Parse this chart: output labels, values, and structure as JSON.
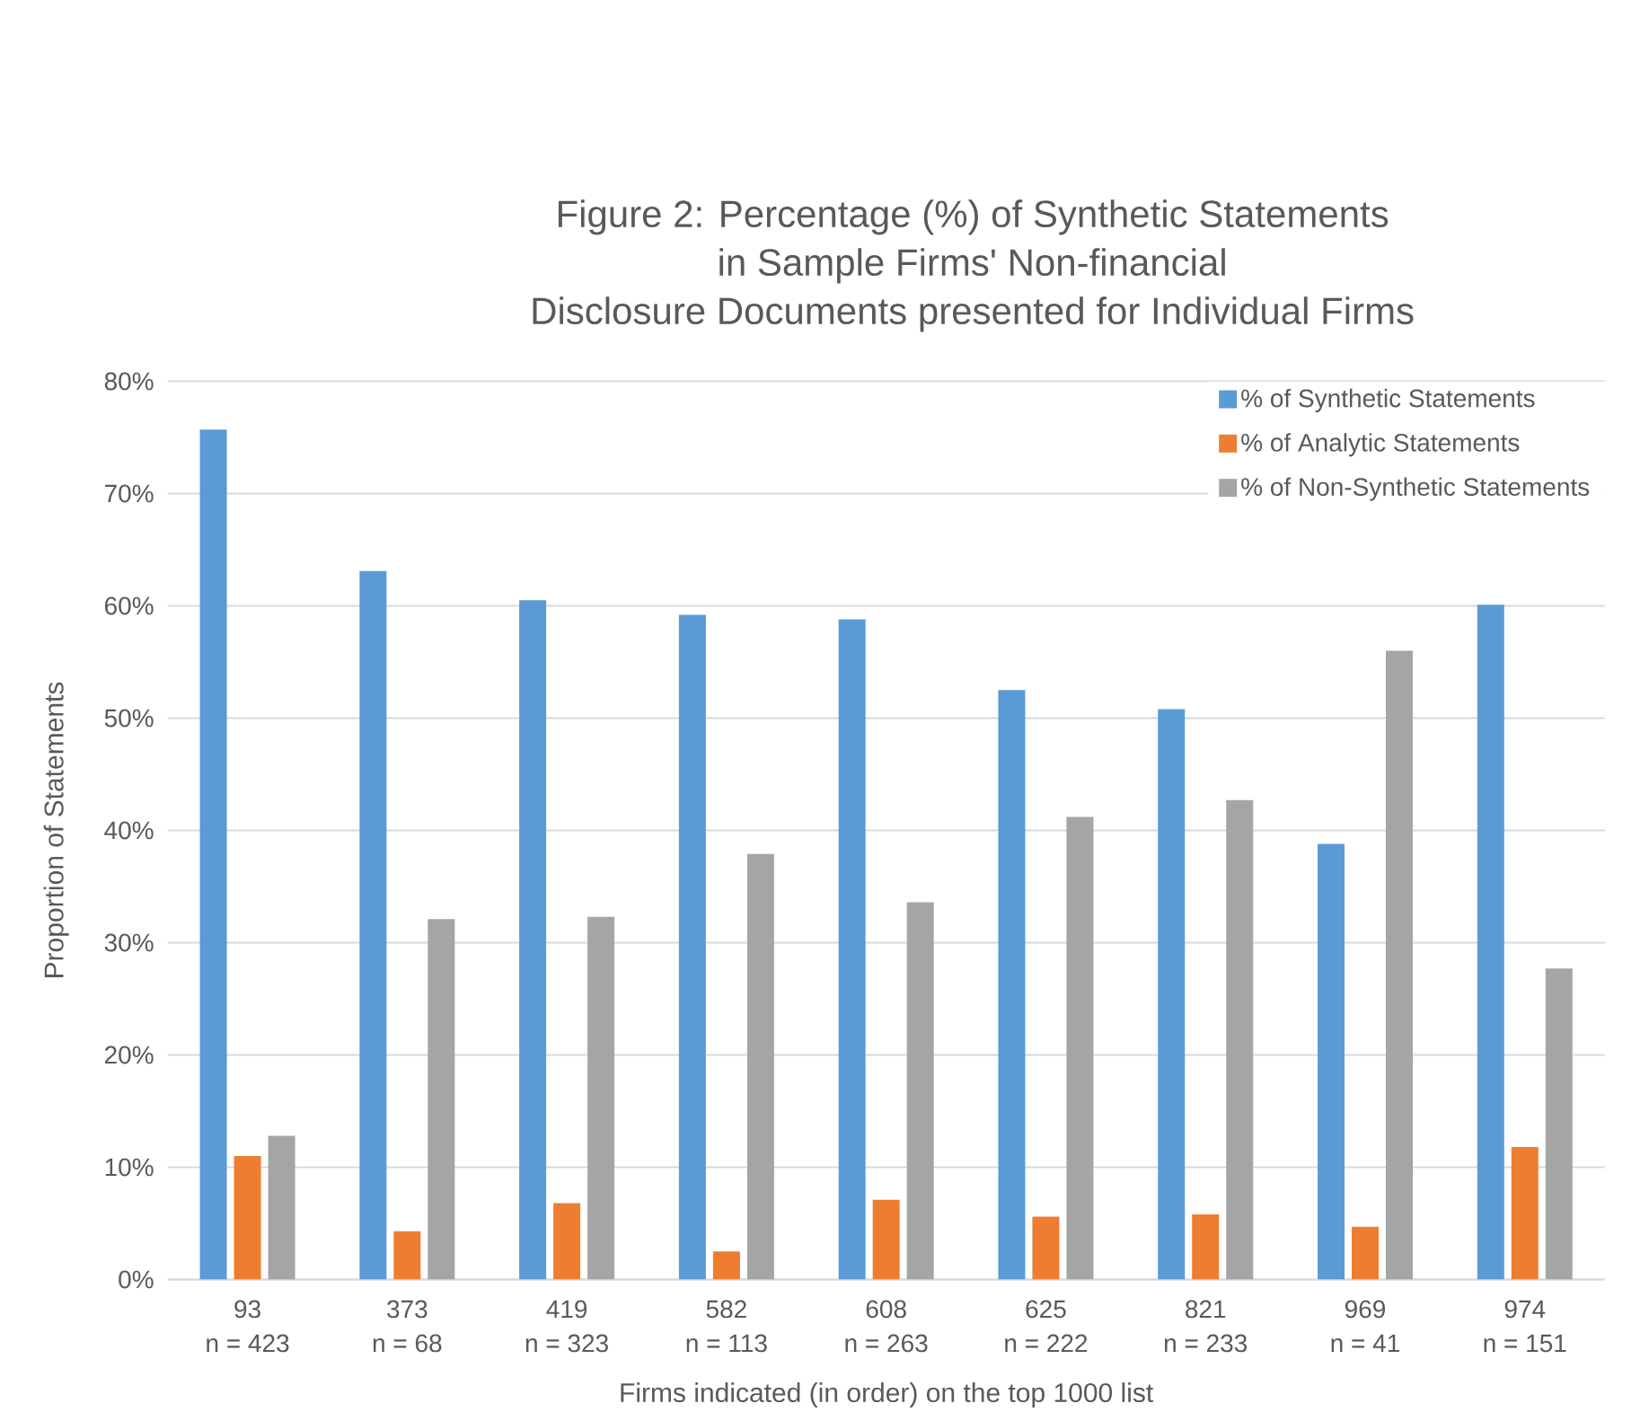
{
  "chart_data": {
    "type": "bar",
    "title": "Figure 2: Percentage (%) of Synthetic Statements\nin Sample Firms' Non-financial\nDisclosure Documents presented for Individual Firms",
    "xlabel": "Firms indicated (in order) on the top 1000 list",
    "ylabel": "Proportion of Statements",
    "categories": [
      "93\nn = 423",
      "373\nn = 68",
      "419\nn = 323",
      "582\nn = 113",
      "608\nn = 263",
      "625\nn = 222",
      "821\nn = 233",
      "969\nn = 41",
      "974\nn = 151"
    ],
    "series": [
      {
        "name": "% of Synthetic Statements",
        "color": "#5b9bd5",
        "values": [
          75.7,
          63.1,
          60.5,
          59.2,
          58.8,
          52.5,
          50.8,
          38.8,
          60.1
        ]
      },
      {
        "name": "% of Analytic Statements",
        "color": "#ed7d31",
        "values": [
          11.0,
          4.3,
          6.8,
          2.5,
          7.1,
          5.6,
          5.8,
          4.7,
          11.8
        ]
      },
      {
        "name": "% of Non-Synthetic Statements",
        "color": "#a5a5a5",
        "values": [
          12.8,
          32.1,
          32.3,
          37.9,
          33.6,
          41.2,
          42.7,
          56.0,
          27.7
        ]
      }
    ],
    "ylim": [
      0,
      80
    ],
    "yticks": [
      {
        "value": 0,
        "label": "0%"
      },
      {
        "value": 10,
        "label": "10%"
      },
      {
        "value": 20,
        "label": "20%"
      },
      {
        "value": 30,
        "label": "30%"
      },
      {
        "value": 40,
        "label": "40%"
      },
      {
        "value": 50,
        "label": "50%"
      },
      {
        "value": 60,
        "label": "60%"
      },
      {
        "value": 70,
        "label": "70%"
      },
      {
        "value": 80,
        "label": "80%"
      }
    ],
    "grid": "y",
    "legend": "top right"
  }
}
